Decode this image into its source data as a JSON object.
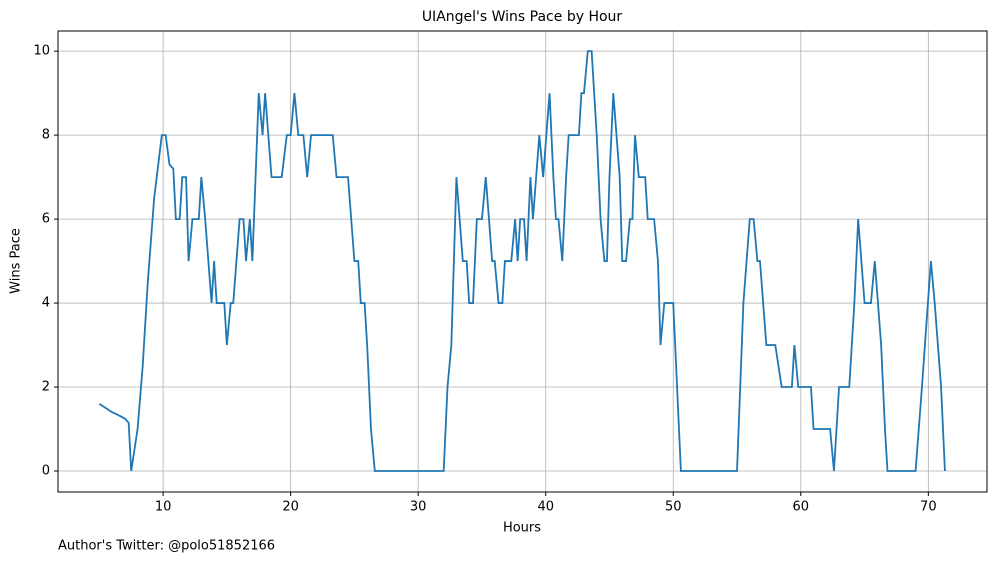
{
  "chart_data": {
    "type": "line",
    "title": "UIAngel's Wins Pace by Hour",
    "x_label": "Hours",
    "y_label": "Wins Pace",
    "footnote": "Author's Twitter: @polo51852166",
    "x": [
      5.0,
      5.5,
      6.0,
      6.5,
      7.0,
      7.3,
      7.5,
      8.0,
      8.4,
      8.8,
      9.3,
      9.9,
      10.2,
      10.5,
      10.8,
      11.0,
      11.3,
      11.5,
      11.8,
      12.0,
      12.3,
      12.8,
      13.0,
      13.3,
      13.8,
      14.0,
      14.2,
      14.8,
      15.0,
      15.3,
      15.5,
      16.0,
      16.3,
      16.5,
      16.8,
      17.0,
      17.5,
      17.8,
      18.0,
      18.5,
      19.3,
      19.7,
      20.0,
      20.3,
      20.6,
      21.0,
      21.3,
      21.6,
      23.3,
      23.6,
      24.5,
      25.0,
      25.3,
      25.5,
      25.8,
      26.0,
      26.3,
      26.6,
      32.0,
      32.3,
      32.6,
      33.0,
      33.5,
      33.8,
      34.0,
      34.3,
      34.6,
      35.0,
      35.3,
      35.8,
      36.0,
      36.3,
      36.6,
      36.8,
      37.3,
      37.6,
      37.8,
      38.0,
      38.3,
      38.5,
      38.8,
      39.0,
      39.5,
      39.8,
      40.3,
      40.6,
      40.8,
      41.0,
      41.3,
      41.6,
      41.8,
      42.6,
      42.8,
      43.0,
      43.3,
      43.6,
      44.0,
      44.3,
      44.6,
      44.8,
      45.0,
      45.3,
      45.8,
      46.0,
      46.3,
      46.6,
      46.8,
      47.0,
      47.3,
      47.8,
      48.0,
      48.5,
      48.8,
      49.0,
      49.3,
      50.0,
      50.3,
      50.6,
      55.0,
      55.5,
      56.0,
      56.3,
      56.6,
      56.8,
      57.3,
      58.0,
      58.5,
      59.3,
      59.5,
      59.8,
      60.8,
      61.0,
      62.3,
      62.6,
      63.0,
      63.8,
      64.2,
      64.5,
      65.0,
      65.5,
      65.8,
      66.3,
      66.6,
      66.8,
      69.0,
      69.5,
      70.2,
      70.5,
      71.0,
      71.3
    ],
    "series": [
      {
        "name": "Wins Pace",
        "color": "#1f77b4",
        "values": [
          1.6,
          1.5,
          1.4,
          1.33,
          1.25,
          1.15,
          0,
          1,
          2.5,
          4.5,
          6.5,
          8,
          8,
          7.3,
          7.2,
          6,
          6,
          7,
          7,
          5,
          6,
          6,
          7,
          6,
          4,
          5,
          4,
          4,
          3,
          4,
          4,
          6,
          6,
          5,
          6,
          5,
          9,
          8,
          9,
          7,
          7,
          8,
          8,
          9,
          8,
          8,
          7,
          8,
          8,
          7,
          7,
          5,
          5,
          4,
          4,
          3,
          1,
          0,
          0,
          2,
          3,
          7,
          5,
          5,
          4,
          4,
          6,
          6,
          7,
          5,
          5,
          4,
          4,
          5,
          5,
          6,
          5,
          6,
          6,
          5,
          7,
          6,
          8,
          7,
          9,
          7,
          6,
          6,
          5,
          7,
          8,
          8,
          9,
          9,
          10,
          10,
          8,
          6,
          5,
          5,
          7,
          9,
          7,
          5,
          5,
          6,
          6,
          8,
          7,
          7,
          6,
          6,
          5,
          3,
          4,
          4,
          2,
          0,
          0,
          4,
          6,
          6,
          5,
          5,
          3,
          3,
          2,
          2,
          3,
          2,
          2,
          1,
          1,
          0,
          2,
          2,
          4,
          6,
          4,
          4,
          5,
          3,
          1,
          0,
          0,
          2,
          5,
          4,
          2,
          0
        ]
      }
    ],
    "xlim": [
      1.76,
      74.6
    ],
    "ylim": [
      -0.5,
      10.48
    ],
    "xticks": [
      10,
      20,
      30,
      40,
      50,
      60,
      70
    ],
    "yticks": [
      0,
      2,
      4,
      6,
      8,
      10
    ],
    "grid": true
  }
}
